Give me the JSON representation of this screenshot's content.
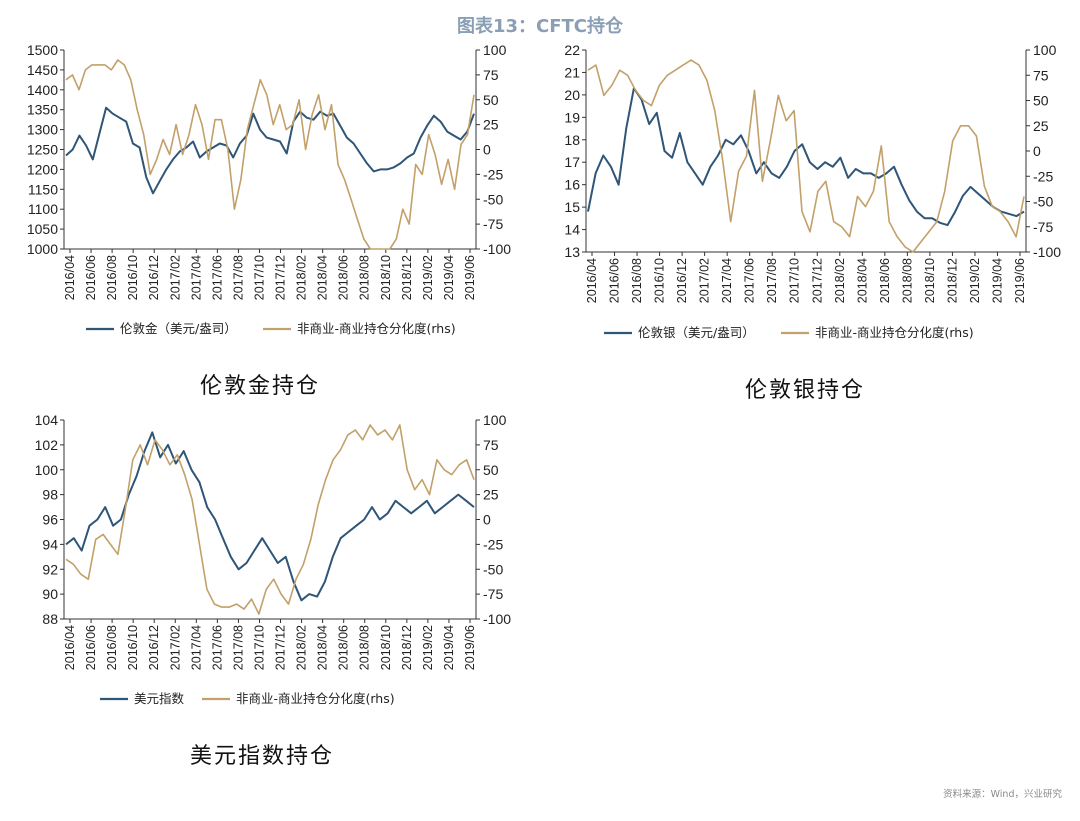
{
  "page": {
    "title": "图表13：CFTC持仓",
    "source": "资料来源：Wind，兴业研究"
  },
  "colors": {
    "primary": "#2f5577",
    "secondary": "#c2a06a"
  },
  "chart_data": [
    {
      "type": "line",
      "caption": "伦敦金持仓",
      "x_ticks": [
        "2016/04",
        "2016/06",
        "2016/08",
        "2016/10",
        "2016/12",
        "2017/02",
        "2017/04",
        "2017/06",
        "2017/08",
        "2017/10",
        "2017/12",
        "2018/02",
        "2018/04",
        "2018/06",
        "2018/08",
        "2018/10",
        "2018/12",
        "2019/02",
        "2019/04",
        "2019/06"
      ],
      "y_left": {
        "min": 1000,
        "max": 1500,
        "ticks": [
          1000,
          1050,
          1100,
          1150,
          1200,
          1250,
          1300,
          1350,
          1400,
          1450,
          1500
        ]
      },
      "y_right": {
        "min": -100,
        "max": 100,
        "ticks": [
          -100,
          -75,
          -50,
          -25,
          0,
          25,
          50,
          75,
          100
        ]
      },
      "series": [
        {
          "name": "伦敦金（美元/盎司）",
          "axis": "left",
          "color": "#2f5577",
          "values": [
            1235,
            1250,
            1285,
            1260,
            1225,
            1290,
            1355,
            1340,
            1330,
            1320,
            1265,
            1255,
            1180,
            1140,
            1170,
            1200,
            1225,
            1245,
            1255,
            1270,
            1230,
            1245,
            1255,
            1265,
            1260,
            1230,
            1265,
            1285,
            1340,
            1300,
            1280,
            1275,
            1270,
            1240,
            1320,
            1345,
            1330,
            1325,
            1345,
            1335,
            1340,
            1310,
            1280,
            1265,
            1240,
            1215,
            1195,
            1200,
            1200,
            1205,
            1215,
            1230,
            1240,
            1280,
            1310,
            1335,
            1320,
            1295,
            1285,
            1275,
            1295,
            1340
          ]
        },
        {
          "name": "非商业-商业持仓分化度(rhs)",
          "axis": "right",
          "color": "#c2a06a",
          "values": [
            70,
            75,
            60,
            80,
            85,
            85,
            85,
            80,
            90,
            85,
            70,
            40,
            15,
            -25,
            -10,
            10,
            -5,
            25,
            -5,
            15,
            45,
            25,
            -10,
            30,
            30,
            0,
            -60,
            -30,
            20,
            45,
            70,
            55,
            25,
            45,
            20,
            25,
            50,
            0,
            35,
            55,
            20,
            45,
            -15,
            -30,
            -50,
            -70,
            -90,
            -100,
            -100,
            -100,
            -100,
            -90,
            -60,
            -75,
            -15,
            -25,
            15,
            -5,
            -35,
            -10,
            -40,
            5,
            15,
            55
          ]
        }
      ]
    },
    {
      "type": "line",
      "caption": "伦敦银持仓",
      "x_ticks": [
        "2016/04",
        "2016/06",
        "2016/08",
        "2016/10",
        "2016/12",
        "2017/02",
        "2017/04",
        "2017/06",
        "2017/08",
        "2017/10",
        "2017/12",
        "2018/02",
        "2018/04",
        "2018/06",
        "2018/08",
        "2018/10",
        "2018/12",
        "2019/02",
        "2019/04",
        "2019/06"
      ],
      "y_left": {
        "min": 13,
        "max": 22,
        "ticks": [
          13,
          14,
          15,
          16,
          17,
          18,
          19,
          20,
          21,
          22
        ]
      },
      "y_right": {
        "min": -100,
        "max": 100,
        "ticks": [
          -100,
          -75,
          -50,
          -25,
          0,
          25,
          50,
          75,
          100
        ]
      },
      "series": [
        {
          "name": "伦敦银（美元/盎司）",
          "axis": "left",
          "color": "#2f5577",
          "values": [
            14.8,
            16.5,
            17.3,
            16.8,
            16.0,
            18.5,
            20.3,
            19.8,
            18.7,
            19.2,
            17.5,
            17.2,
            18.3,
            17.0,
            16.5,
            16.0,
            16.8,
            17.3,
            18.0,
            17.8,
            18.2,
            17.5,
            16.5,
            17.0,
            16.5,
            16.3,
            16.8,
            17.5,
            17.8,
            17.0,
            16.7,
            17.0,
            16.8,
            17.2,
            16.3,
            16.7,
            16.5,
            16.5,
            16.3,
            16.5,
            16.8,
            16.0,
            15.3,
            14.8,
            14.5,
            14.5,
            14.3,
            14.2,
            14.8,
            15.5,
            15.9,
            15.6,
            15.3,
            15.0,
            14.8,
            14.7,
            14.6,
            14.8
          ]
        },
        {
          "name": "非商业-商业持仓分化度(rhs)",
          "axis": "right",
          "color": "#c2a06a",
          "values": [
            80,
            85,
            55,
            65,
            80,
            75,
            60,
            50,
            45,
            65,
            75,
            80,
            85,
            90,
            85,
            70,
            40,
            -10,
            -70,
            -20,
            -5,
            60,
            -30,
            10,
            55,
            30,
            40,
            -60,
            -80,
            -40,
            -30,
            -70,
            -75,
            -85,
            -45,
            -55,
            -40,
            5,
            -70,
            -85,
            -95,
            -100,
            -90,
            -80,
            -70,
            -40,
            10,
            25,
            25,
            15,
            -35,
            -55,
            -60,
            -70,
            -85,
            -45
          ]
        }
      ]
    },
    {
      "type": "line",
      "caption": "美元指数持仓",
      "x_ticks": [
        "2016/04",
        "2016/06",
        "2016/08",
        "2016/10",
        "2016/12",
        "2017/02",
        "2017/04",
        "2017/06",
        "2017/08",
        "2017/10",
        "2017/12",
        "2018/02",
        "2018/04",
        "2018/06",
        "2018/08",
        "2018/10",
        "2018/12",
        "2019/02",
        "2019/04",
        "2019/06"
      ],
      "y_left": {
        "min": 88,
        "max": 104,
        "ticks": [
          88,
          90,
          92,
          94,
          96,
          98,
          100,
          102,
          104
        ]
      },
      "y_right": {
        "min": -100,
        "max": 100,
        "ticks": [
          -100,
          -75,
          -50,
          -25,
          0,
          25,
          50,
          75,
          100
        ]
      },
      "series": [
        {
          "name": "美元指数",
          "axis": "right_hidden_left",
          "color": "#2f5577",
          "values": [
            94.0,
            94.5,
            93.5,
            95.5,
            96.0,
            97.0,
            95.5,
            96.0,
            98.0,
            99.5,
            101.5,
            103.0,
            101.0,
            102.0,
            100.5,
            101.5,
            100.0,
            99.0,
            97.0,
            96.0,
            94.5,
            93.0,
            92.0,
            92.5,
            93.5,
            94.5,
            93.5,
            92.5,
            93.0,
            91.0,
            89.5,
            90.0,
            89.8,
            91.0,
            93.0,
            94.5,
            95.0,
            95.5,
            96.0,
            97.0,
            96.0,
            96.5,
            97.5,
            97.0,
            96.5,
            97.0,
            97.5,
            96.5,
            97.0,
            97.5,
            98.0,
            97.5,
            97.0
          ]
        },
        {
          "name": "非商业-商业持仓分化度(rhs)",
          "axis": "right",
          "color": "#c2a06a",
          "values": [
            -40,
            -45,
            -55,
            -60,
            -20,
            -15,
            -25,
            -35,
            10,
            60,
            75,
            55,
            80,
            70,
            55,
            65,
            45,
            20,
            -25,
            -70,
            -85,
            -88,
            -88,
            -85,
            -90,
            -80,
            -95,
            -70,
            -60,
            -75,
            -85,
            -60,
            -45,
            -20,
            15,
            40,
            60,
            70,
            85,
            90,
            80,
            95,
            85,
            90,
            80,
            95,
            50,
            30,
            40,
            25,
            60,
            50,
            45,
            55,
            60,
            40
          ]
        }
      ]
    }
  ]
}
